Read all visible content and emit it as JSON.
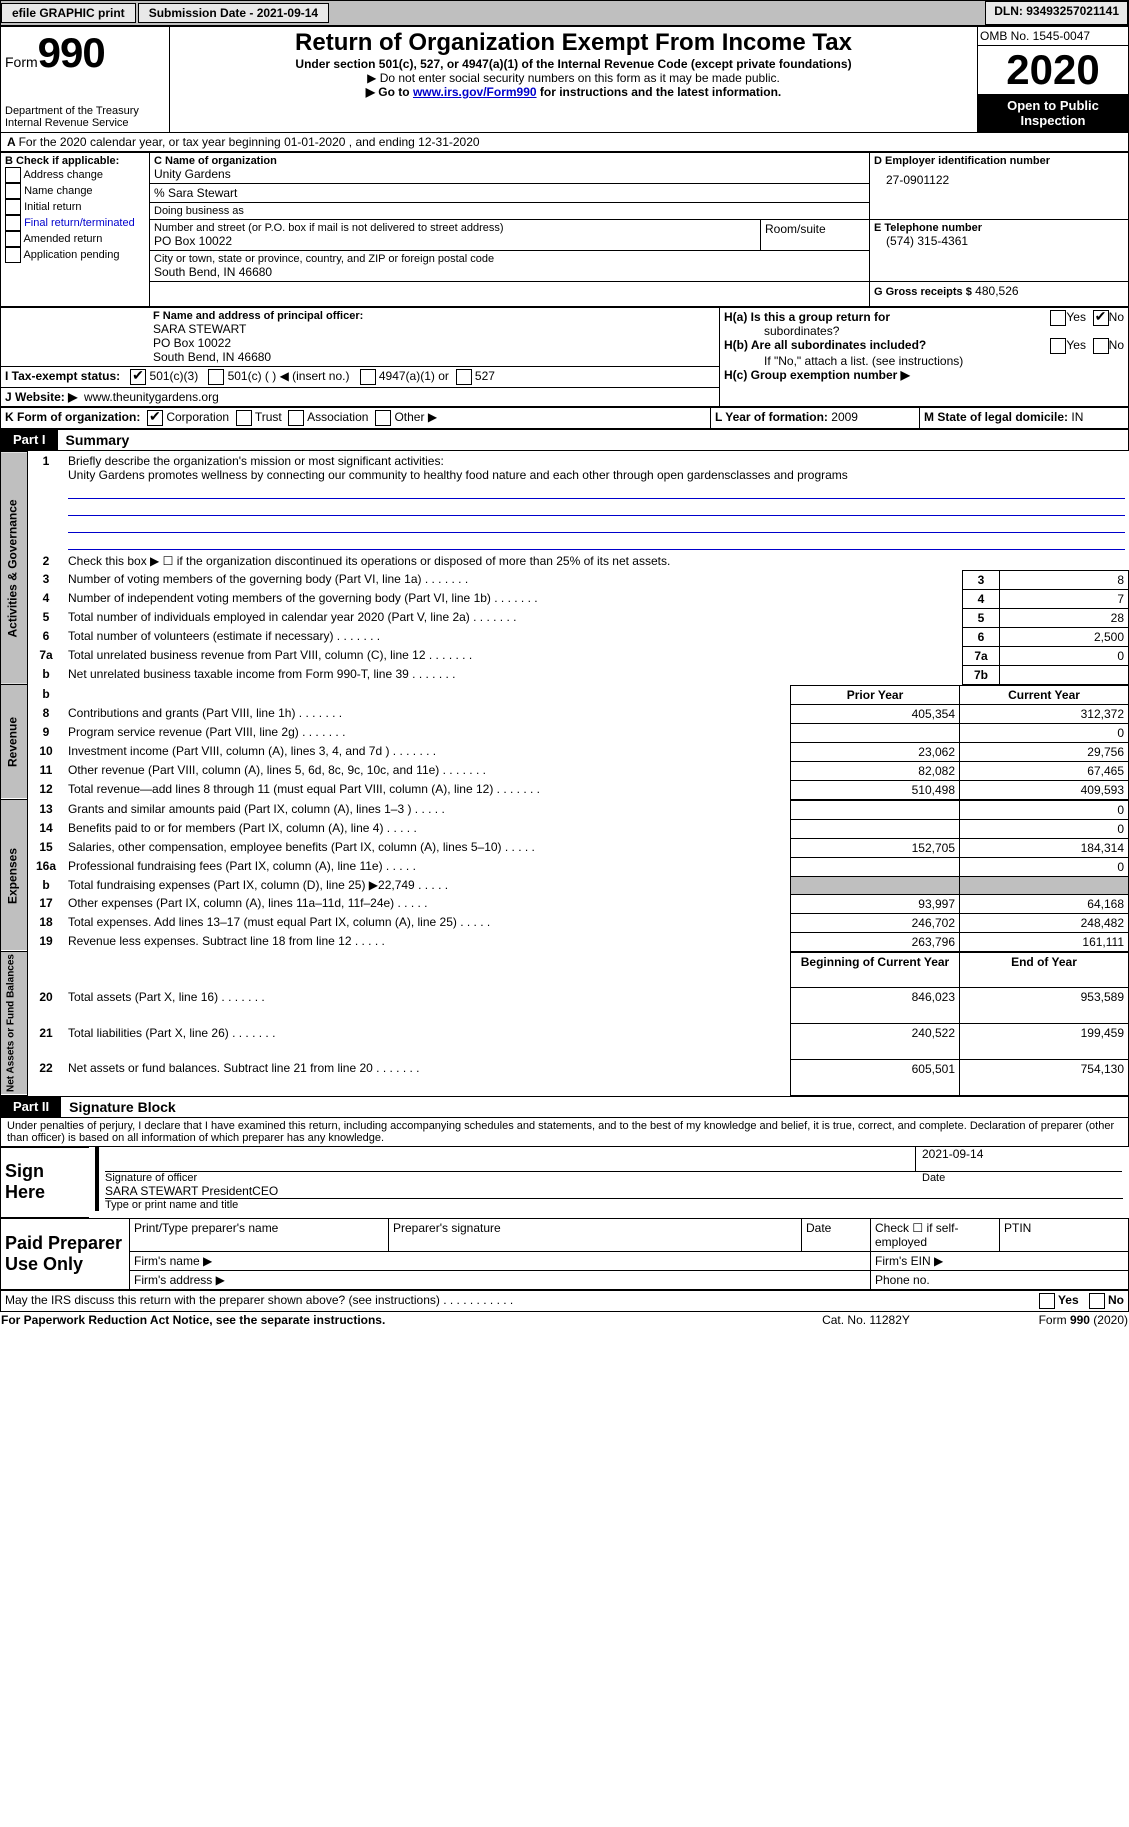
{
  "topbar": {
    "efile": "efile GRAPHIC print",
    "submission": "Submission Date - 2021-09-14",
    "dln": "DLN: 93493257021141"
  },
  "header": {
    "form_label": "Form",
    "form_number": "990",
    "title": "Return of Organization Exempt From Income Tax",
    "subtitle": "Under section 501(c), 527, or 4947(a)(1) of the Internal Revenue Code (except private foundations)",
    "note1": "▶ Do not enter social security numbers on this form as it may be made public.",
    "note2_pre": "▶ Go to ",
    "note2_link": "www.irs.gov/Form990",
    "note2_post": " for instructions and the latest information.",
    "dept": "Department of the Treasury\nInternal Revenue Service",
    "omb": "OMB No. 1545-0047",
    "year": "2020",
    "inspect": "Open to Public Inspection"
  },
  "lineA": "For the 2020 calendar year, or tax year beginning 01-01-2020   , and ending 12-31-2020",
  "boxB": {
    "label": "B Check if applicable:",
    "items": [
      "Address change",
      "Name change",
      "Initial return",
      "Final return/terminated",
      "Amended return",
      "Application pending"
    ]
  },
  "boxC": {
    "label": "C Name of organization",
    "org": "Unity Gardens",
    "care": "% Sara Stewart",
    "dba_label": "Doing business as",
    "addr_label": "Number and street (or P.O. box if mail is not delivered to street address)",
    "addr": "PO Box 10022",
    "room_label": "Room/suite",
    "city_label": "City or town, state or province, country, and ZIP or foreign postal code",
    "city": "South Bend, IN  46680"
  },
  "boxD": {
    "label": "D Employer identification number",
    "ein": "27-0901122"
  },
  "boxE": {
    "label": "E Telephone number",
    "phone": "(574) 315-4361"
  },
  "boxG": {
    "label": "G Gross receipts $",
    "amount": "480,526"
  },
  "boxF": {
    "label": "F Name and address of principal officer:",
    "name": "SARA STEWART",
    "addr1": "PO Box 10022",
    "addr2": "South Bend, IN  46680"
  },
  "boxH": {
    "a_label": "H(a)  Is this a group return for",
    "a_sub": "subordinates?",
    "b_label": "H(b)  Are all subordinates included?",
    "b_note": "If \"No,\" attach a list. (see instructions)",
    "c_label": "H(c)  Group exemption number ▶",
    "yes": "Yes",
    "no": "No"
  },
  "boxI": {
    "label": "I    Tax-exempt status:",
    "opts": [
      "501(c)(3)",
      "501(c) (  ) ◀ (insert no.)",
      "4947(a)(1) or",
      "527"
    ]
  },
  "boxJ": {
    "label": "J   Website: ▶",
    "url": "www.theunitygardens.org"
  },
  "boxK": {
    "label": "K Form of organization:",
    "opts": [
      "Corporation",
      "Trust",
      "Association",
      "Other ▶"
    ]
  },
  "boxL": {
    "label": "L Year of formation:",
    "val": "2009"
  },
  "boxM": {
    "label": "M State of legal domicile:",
    "val": "IN"
  },
  "part1": {
    "label": "Part I",
    "title": "Summary",
    "line1_label": "Briefly describe the organization's mission or most significant activities:",
    "line1_text": "Unity Gardens promotes wellness by connecting our community to healthy food nature and each other through open gardensclasses and programs",
    "line2": "Check this box ▶ ☐  if the organization discontinued its operations or disposed of more than 25% of its net assets.",
    "rows_governance": [
      {
        "n": "3",
        "label": "Number of voting members of the governing body (Part VI, line 1a)",
        "box": "3",
        "val": "8"
      },
      {
        "n": "4",
        "label": "Number of independent voting members of the governing body (Part VI, line 1b)",
        "box": "4",
        "val": "7"
      },
      {
        "n": "5",
        "label": "Total number of individuals employed in calendar year 2020 (Part V, line 2a)",
        "box": "5",
        "val": "28"
      },
      {
        "n": "6",
        "label": "Total number of volunteers (estimate if necessary)",
        "box": "6",
        "val": "2,500"
      },
      {
        "n": "7a",
        "label": "Total unrelated business revenue from Part VIII, column (C), line 12",
        "box": "7a",
        "val": "0"
      },
      {
        "n": "b",
        "label": "Net unrelated business taxable income from Form 990-T, line 39",
        "box": "7b",
        "val": ""
      }
    ],
    "col_prior": "Prior Year",
    "col_current": "Current Year",
    "rows_revenue": [
      {
        "n": "8",
        "label": "Contributions and grants (Part VIII, line 1h)",
        "p": "405,354",
        "c": "312,372"
      },
      {
        "n": "9",
        "label": "Program service revenue (Part VIII, line 2g)",
        "p": "",
        "c": "0"
      },
      {
        "n": "10",
        "label": "Investment income (Part VIII, column (A), lines 3, 4, and 7d )",
        "p": "23,062",
        "c": "29,756"
      },
      {
        "n": "11",
        "label": "Other revenue (Part VIII, column (A), lines 5, 6d, 8c, 9c, 10c, and 11e)",
        "p": "82,082",
        "c": "67,465"
      },
      {
        "n": "12",
        "label": "Total revenue—add lines 8 through 11 (must equal Part VIII, column (A), line 12)",
        "p": "510,498",
        "c": "409,593"
      }
    ],
    "rows_expenses": [
      {
        "n": "13",
        "label": "Grants and similar amounts paid (Part IX, column (A), lines 1–3 )",
        "p": "",
        "c": "0"
      },
      {
        "n": "14",
        "label": "Benefits paid to or for members (Part IX, column (A), line 4)",
        "p": "",
        "c": "0"
      },
      {
        "n": "15",
        "label": "Salaries, other compensation, employee benefits (Part IX, column (A), lines 5–10)",
        "p": "152,705",
        "c": "184,314"
      },
      {
        "n": "16a",
        "label": "Professional fundraising fees (Part IX, column (A), line 11e)",
        "p": "",
        "c": "0"
      },
      {
        "n": "b",
        "label": "Total fundraising expenses (Part IX, column (D), line 25) ▶22,749",
        "p": "GRAY",
        "c": "GRAY"
      },
      {
        "n": "17",
        "label": "Other expenses (Part IX, column (A), lines 11a–11d, 11f–24e)",
        "p": "93,997",
        "c": "64,168"
      },
      {
        "n": "18",
        "label": "Total expenses. Add lines 13–17 (must equal Part IX, column (A), line 25)",
        "p": "246,702",
        "c": "248,482"
      },
      {
        "n": "19",
        "label": "Revenue less expenses. Subtract line 18 from line 12",
        "p": "263,796",
        "c": "161,111"
      }
    ],
    "col_begin": "Beginning of Current Year",
    "col_end": "End of Year",
    "rows_net": [
      {
        "n": "20",
        "label": "Total assets (Part X, line 16)",
        "p": "846,023",
        "c": "953,589"
      },
      {
        "n": "21",
        "label": "Total liabilities (Part X, line 26)",
        "p": "240,522",
        "c": "199,459"
      },
      {
        "n": "22",
        "label": "Net assets or fund balances. Subtract line 21 from line 20",
        "p": "605,501",
        "c": "754,130"
      }
    ],
    "vlabel1": "Activities & Governance",
    "vlabel2": "Revenue",
    "vlabel3": "Expenses",
    "vlabel4": "Net Assets or Fund Balances"
  },
  "part2": {
    "label": "Part II",
    "title": "Signature Block",
    "declaration": "Under penalties of perjury, I declare that I have examined this return, including accompanying schedules and statements, and to the best of my knowledge and belief, it is true, correct, and complete. Declaration of preparer (other than officer) is based on all information of which preparer has any knowledge.",
    "sign_here": "Sign Here",
    "sig_officer": "Signature of officer",
    "sig_date": "Date",
    "sig_date_val": "2021-09-14",
    "sig_name": "SARA STEWART PresidentCEO",
    "sig_name_label": "Type or print name and title",
    "paid": "Paid Preparer Use Only",
    "prep_name": "Print/Type preparer's name",
    "prep_sig": "Preparer's signature",
    "prep_date": "Date",
    "prep_check": "Check ☐ if self-employed",
    "ptin": "PTIN",
    "firm_name": "Firm's name  ▶",
    "firm_ein": "Firm's EIN ▶",
    "firm_addr": "Firm's address ▶",
    "firm_phone": "Phone no."
  },
  "footer": {
    "discuss": "May the IRS discuss this return with the preparer shown above? (see instructions)",
    "yes": "Yes",
    "no": "No",
    "paperwork": "For Paperwork Reduction Act Notice, see the separate instructions.",
    "cat": "Cat. No. 11282Y",
    "form": "Form 990 (2020)"
  }
}
